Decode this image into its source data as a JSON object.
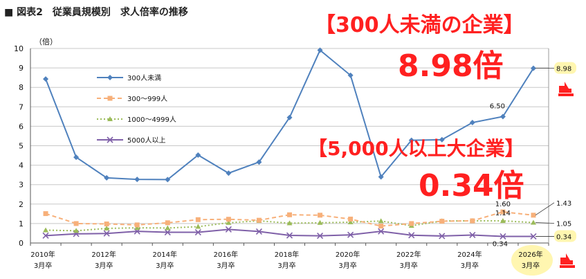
{
  "figure": {
    "title": "■ 図表2　従業員規模別　求人倍率の推移",
    "callout_large_label": "【300人未満の企業】",
    "callout_large_value": "8.98倍",
    "callout_big_label": "【5,000人以上大企業】",
    "callout_big_value": "0.34倍",
    "colors": {
      "series_300": "#4f81bd",
      "series_300_999": "#f7b07a",
      "series_1000_4999": "#9bbb59",
      "series_5000": "#7f60a8",
      "callout": "#ff2020",
      "highlight": "#fff6b0",
      "grid": "#c8c8c8"
    },
    "icons": [
      "chart-down-arrow-icon",
      "chart-up-arrow-icon"
    ]
  },
  "chart_data": {
    "type": "line",
    "ylabel": "（倍）",
    "ylim": [
      0,
      10
    ],
    "yticks": [
      0,
      1,
      2,
      3,
      4,
      5,
      6,
      7,
      8,
      9,
      10
    ],
    "x": [
      "2010年3月卒",
      "2011年3月卒",
      "2012年3月卒",
      "2013年3月卒",
      "2014年3月卒",
      "2015年3月卒",
      "2016年3月卒",
      "2017年3月卒",
      "2018年3月卒",
      "2019年3月卒",
      "2020年3月卒",
      "2021年3月卒",
      "2022年3月卒",
      "2023年3月卒",
      "2024年3月卒",
      "2025年3月卒",
      "2026年3月卒"
    ],
    "x_tick_labels": [
      {
        "index": 0,
        "line1": "2010年",
        "line2": "3月卒"
      },
      {
        "index": 2,
        "line1": "2012年",
        "line2": "3月卒"
      },
      {
        "index": 4,
        "line1": "2014年",
        "line2": "3月卒"
      },
      {
        "index": 6,
        "line1": "2016年",
        "line2": "3月卒"
      },
      {
        "index": 8,
        "line1": "2018年",
        "line2": "3月卒"
      },
      {
        "index": 10,
        "line1": "2020年",
        "line2": "3月卒"
      },
      {
        "index": 12,
        "line1": "2022年",
        "line2": "3月卒"
      },
      {
        "index": 14,
        "line1": "2024年",
        "line2": "3月卒"
      },
      {
        "index": 16,
        "line1": "2026年",
        "line2": "3月卒"
      }
    ],
    "series": [
      {
        "name": "300人未満",
        "marker": "diamond",
        "dash": "",
        "colorKey": "series_300",
        "values": [
          8.43,
          4.41,
          3.35,
          3.27,
          3.26,
          4.52,
          3.59,
          4.16,
          6.45,
          9.91,
          8.62,
          3.4,
          5.28,
          5.31,
          6.19,
          6.5,
          8.98
        ]
      },
      {
        "name": "300〜999人",
        "marker": "square",
        "dash": "6,4",
        "colorKey": "series_300_999",
        "values": [
          1.51,
          1.0,
          0.98,
          0.93,
          1.04,
          1.2,
          1.22,
          1.17,
          1.45,
          1.43,
          1.23,
          0.87,
          1.0,
          1.12,
          1.14,
          1.6,
          1.43
        ]
      },
      {
        "name": "1000〜4999人",
        "marker": "triangle",
        "dash": "2,3",
        "colorKey": "series_1000_4999",
        "values": [
          0.66,
          0.63,
          0.75,
          0.78,
          0.77,
          0.84,
          1.04,
          1.14,
          1.02,
          1.04,
          1.07,
          1.13,
          0.89,
          1.13,
          1.14,
          1.14,
          1.05
        ]
      },
      {
        "name": "5000人以上",
        "marker": "cross",
        "dash": "",
        "colorKey": "series_5000",
        "values": [
          0.38,
          0.47,
          0.49,
          0.6,
          0.55,
          0.55,
          0.7,
          0.59,
          0.39,
          0.37,
          0.42,
          0.6,
          0.4,
          0.36,
          0.41,
          0.34,
          0.34
        ]
      }
    ],
    "annotations": [
      {
        "series": 0,
        "index": 15,
        "text": "6.50"
      },
      {
        "series": 1,
        "index": 15,
        "text": "1.60"
      },
      {
        "series": 2,
        "index": 15,
        "text": "1.14"
      },
      {
        "series": 3,
        "index": 15,
        "text": "0.34"
      }
    ],
    "end_labels": [
      {
        "series": 0,
        "text": "8.98",
        "highlight": true
      },
      {
        "series": 1,
        "text": "1.43",
        "highlight": false
      },
      {
        "series": 2,
        "text": "1.05",
        "highlight": false
      },
      {
        "series": 3,
        "text": "0.34",
        "highlight": true
      }
    ],
    "legend_position": "upper-left",
    "grid": true
  }
}
